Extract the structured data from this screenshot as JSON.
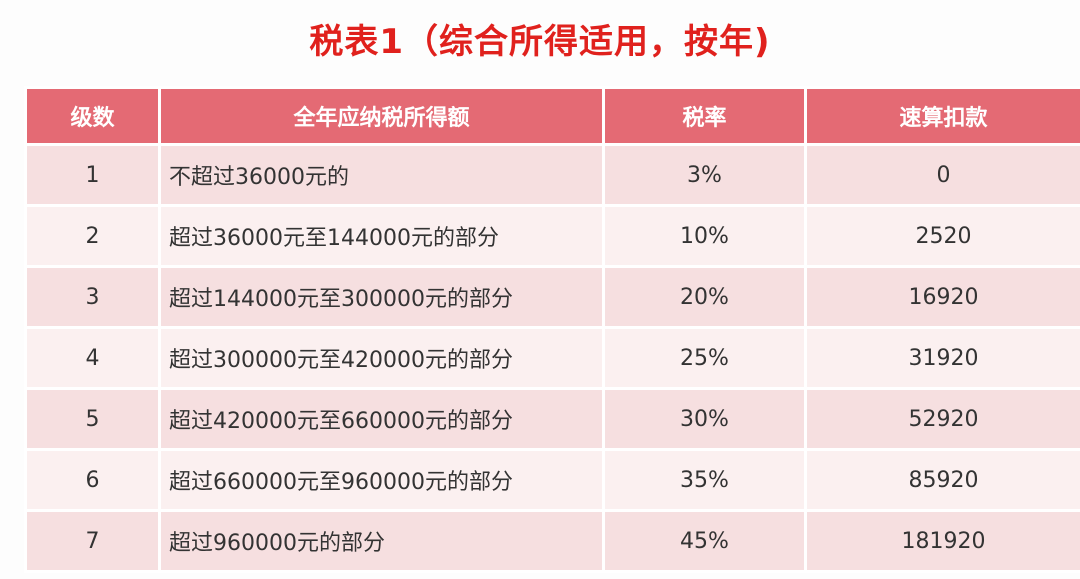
{
  "title": "税表1（综合所得适用，按年)",
  "colors": {
    "title": "#e0211d",
    "header_bg": "#e46a74",
    "row_dark": "#f6dfe0",
    "row_light": "#fbf0f0"
  },
  "table": {
    "headers": {
      "level": "级数",
      "income": "全年应纳税所得额",
      "rate": "税率",
      "deduction": "速算扣款"
    },
    "rows": [
      {
        "level": "1",
        "income": "不超过36000元的",
        "rate": "3%",
        "deduction": "0"
      },
      {
        "level": "2",
        "income": "超过36000元至144000元的部分",
        "rate": "10%",
        "deduction": "2520"
      },
      {
        "level": "3",
        "income": "超过144000元至300000元的部分",
        "rate": "20%",
        "deduction": "16920"
      },
      {
        "level": "4",
        "income": "超过300000元至420000元的部分",
        "rate": "25%",
        "deduction": "31920"
      },
      {
        "level": "5",
        "income": "超过420000元至660000元的部分",
        "rate": "30%",
        "deduction": "52920"
      },
      {
        "level": "6",
        "income": "超过660000元至960000元的部分",
        "rate": "35%",
        "deduction": "85920"
      },
      {
        "level": "7",
        "income": "超过960000元的部分",
        "rate": "45%",
        "deduction": "181920"
      }
    ]
  }
}
